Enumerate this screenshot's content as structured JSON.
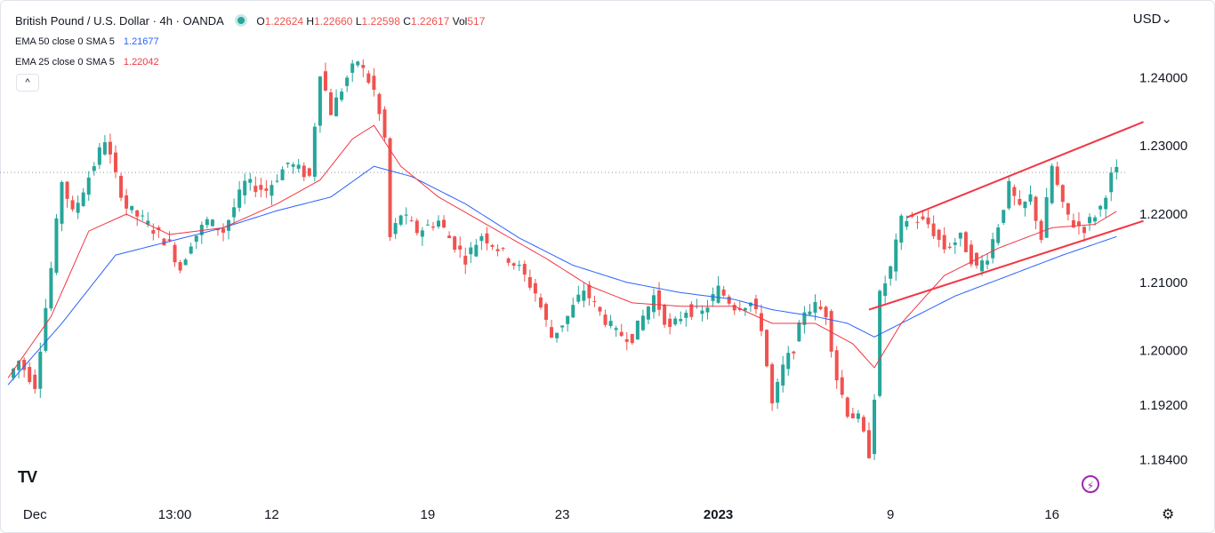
{
  "header": {
    "title": "British Pound / U.S. Dollar · 4h · OANDA",
    "ohlc": {
      "open_label": "O",
      "open": "1.22624",
      "high_label": "H",
      "high": "1.22660",
      "low_label": "L",
      "low": "1.22598",
      "close_label": "C",
      "close": "1.22617",
      "vol_label": "Vol",
      "vol": "517"
    },
    "indicators": [
      {
        "label": "EMA 50 close 0 SMA 5",
        "value": "1.21677"
      },
      {
        "label": "EMA 25 close 0 SMA 5",
        "value": "1.22042"
      }
    ],
    "collapse_glyph": "^",
    "currency": "USD",
    "currency_caret": "⌄"
  },
  "footer": {
    "logo_text": "TV",
    "bolt_glyph": "⚡",
    "gear_glyph": "⚙"
  },
  "colors": {
    "up": "#26a69a",
    "down": "#ef5350",
    "ema50": "#2962ff",
    "ema25": "#f23645",
    "channel": "#f23645"
  },
  "chart_data": {
    "type": "candlestick",
    "yaxis": {
      "range": [
        1.1824,
        1.2455
      ],
      "ticks": [
        "1.24000",
        "1.23000",
        "1.22000",
        "1.21000",
        "1.20000",
        "1.19200",
        "1.18400"
      ],
      "tick_values": [
        1.24,
        1.23,
        1.22,
        1.21,
        1.2,
        1.192,
        1.184
      ]
    },
    "xaxis": {
      "labels": [
        {
          "text": "Dec",
          "bar": 5,
          "bold": false
        },
        {
          "text": "13:00",
          "bar": 31,
          "bold": false
        },
        {
          "text": "12",
          "bar": 49,
          "bold": false
        },
        {
          "text": "19",
          "bar": 78,
          "bold": false
        },
        {
          "text": "23",
          "bar": 103,
          "bold": false
        },
        {
          "text": "2023",
          "bar": 132,
          "bold": true
        },
        {
          "text": "9",
          "bar": 164,
          "bold": false
        },
        {
          "text": "16",
          "bar": 194,
          "bold": false
        }
      ]
    },
    "price_line": 1.2261,
    "anchors": [
      [
        0,
        1.196
      ],
      [
        2,
        1.1985
      ],
      [
        5,
        1.195
      ],
      [
        8,
        1.212
      ],
      [
        10,
        1.225
      ],
      [
        12,
        1.22
      ],
      [
        15,
        1.2255
      ],
      [
        18,
        1.231
      ],
      [
        20,
        1.2255
      ],
      [
        22,
        1.221
      ],
      [
        26,
        1.2185
      ],
      [
        30,
        1.2155
      ],
      [
        32,
        1.212
      ],
      [
        34,
        1.216
      ],
      [
        37,
        1.219
      ],
      [
        40,
        1.2175
      ],
      [
        44,
        1.2245
      ],
      [
        48,
        1.2235
      ],
      [
        52,
        1.2275
      ],
      [
        56,
        1.2255
      ],
      [
        58,
        1.241
      ],
      [
        60,
        1.235
      ],
      [
        63,
        1.24
      ],
      [
        65,
        1.2425
      ],
      [
        68,
        1.238
      ],
      [
        70,
        1.231
      ],
      [
        71,
        1.2165
      ],
      [
        73,
        1.22
      ],
      [
        76,
        1.2175
      ],
      [
        80,
        1.219
      ],
      [
        82,
        1.2165
      ],
      [
        85,
        1.2135
      ],
      [
        88,
        1.217
      ],
      [
        91,
        1.215
      ],
      [
        95,
        1.212
      ],
      [
        98,
        1.2085
      ],
      [
        101,
        1.202
      ],
      [
        104,
        1.205
      ],
      [
        107,
        1.209
      ],
      [
        110,
        1.2055
      ],
      [
        113,
        1.2025
      ],
      [
        116,
        1.202
      ],
      [
        120,
        1.208
      ],
      [
        123,
        1.203
      ],
      [
        126,
        1.206
      ],
      [
        129,
        1.2055
      ],
      [
        132,
        1.209
      ],
      [
        135,
        1.2065
      ],
      [
        138,
        1.207
      ],
      [
        140,
        1.2035
      ],
      [
        142,
        1.192
      ],
      [
        144,
        1.1975
      ],
      [
        146,
        1.2005
      ],
      [
        148,
        1.206
      ],
      [
        150,
        1.2065
      ],
      [
        152,
        1.2055
      ],
      [
        154,
        1.196
      ],
      [
        156,
        1.191
      ],
      [
        158,
        1.19
      ],
      [
        160,
        1.185
      ],
      [
        161,
        1.1935
      ],
      [
        162,
        1.208
      ],
      [
        164,
        1.212
      ],
      [
        166,
        1.219
      ],
      [
        168,
        1.2195
      ],
      [
        171,
        1.2185
      ],
      [
        174,
        1.215
      ],
      [
        177,
        1.2165
      ],
      [
        180,
        1.212
      ],
      [
        182,
        1.214
      ],
      [
        184,
        1.2185
      ],
      [
        186,
        1.224
      ],
      [
        188,
        1.2205
      ],
      [
        190,
        1.2225
      ],
      [
        192,
        1.2165
      ],
      [
        194,
        1.227
      ],
      [
        196,
        1.221
      ],
      [
        198,
        1.2185
      ],
      [
        200,
        1.218
      ],
      [
        203,
        1.221
      ],
      [
        205,
        1.2255
      ],
      [
        206,
        1.2262
      ]
    ],
    "ema50": [
      [
        0,
        1.195
      ],
      [
        10,
        1.204
      ],
      [
        20,
        1.214
      ],
      [
        30,
        1.216
      ],
      [
        40,
        1.218
      ],
      [
        50,
        1.2205
      ],
      [
        60,
        1.2225
      ],
      [
        68,
        1.227
      ],
      [
        75,
        1.2255
      ],
      [
        85,
        1.2215
      ],
      [
        95,
        1.2165
      ],
      [
        105,
        1.2125
      ],
      [
        115,
        1.21
      ],
      [
        125,
        1.2085
      ],
      [
        135,
        1.2075
      ],
      [
        142,
        1.206
      ],
      [
        150,
        1.205
      ],
      [
        156,
        1.204
      ],
      [
        161,
        1.202
      ],
      [
        166,
        1.204
      ],
      [
        176,
        1.208
      ],
      [
        186,
        1.211
      ],
      [
        196,
        1.214
      ],
      [
        206,
        1.2167
      ]
    ],
    "ema25": [
      [
        0,
        1.196
      ],
      [
        8,
        1.205
      ],
      [
        15,
        1.2175
      ],
      [
        22,
        1.22
      ],
      [
        30,
        1.217
      ],
      [
        40,
        1.218
      ],
      [
        50,
        1.2215
      ],
      [
        58,
        1.225
      ],
      [
        64,
        1.231
      ],
      [
        68,
        1.233
      ],
      [
        73,
        1.227
      ],
      [
        80,
        1.2225
      ],
      [
        90,
        1.218
      ],
      [
        100,
        1.2135
      ],
      [
        108,
        1.2095
      ],
      [
        116,
        1.207
      ],
      [
        125,
        1.2065
      ],
      [
        135,
        1.2065
      ],
      [
        142,
        1.204
      ],
      [
        150,
        1.204
      ],
      [
        157,
        1.201
      ],
      [
        161,
        1.1975
      ],
      [
        166,
        1.204
      ],
      [
        174,
        1.211
      ],
      [
        184,
        1.215
      ],
      [
        194,
        1.218
      ],
      [
        202,
        1.2185
      ],
      [
        206,
        1.2204
      ]
    ],
    "channel_upper": [
      [
        167,
        1.2195
      ],
      [
        211,
        1.2335
      ]
    ],
    "channel_lower": [
      [
        160,
        1.206
      ],
      [
        211,
        1.219
      ]
    ]
  }
}
